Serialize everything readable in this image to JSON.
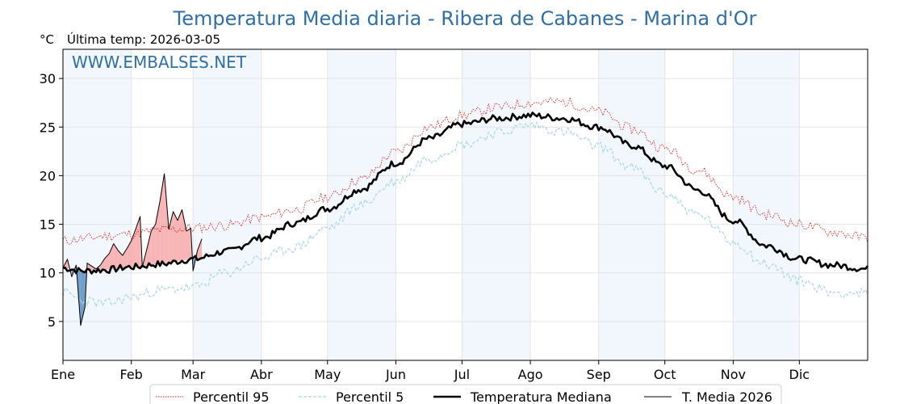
{
  "chart_data": {
    "type": "line",
    "title": "Temperatura Media diaria - Ribera de Cabanes - Marina d'Or",
    "unit_label": "°C",
    "last_temp_label": "Última temp: 2026-03-05",
    "watermark": "WWW.EMBALSES.NET",
    "x_tick_labels": [
      "Ene",
      "Feb",
      "Mar",
      "Abr",
      "May",
      "Jun",
      "Jul",
      "Ago",
      "Sep",
      "Oct",
      "Nov",
      "Dic"
    ],
    "x_tick_days": [
      1,
      32,
      60,
      91,
      121,
      152,
      182,
      213,
      244,
      274,
      305,
      335
    ],
    "xlim": [
      1,
      366
    ],
    "ylim": [
      1,
      33
    ],
    "y_ticks": [
      5,
      10,
      15,
      20,
      25,
      30
    ],
    "grid": true,
    "legend_position": "bottom-center",
    "series": [
      {
        "name": "Percentil 95",
        "style": "dotted",
        "color": "#e0201b",
        "day": [
          1,
          10,
          20,
          32,
          45,
          60,
          75,
          91,
          106,
          121,
          136,
          152,
          167,
          182,
          198,
          213,
          228,
          244,
          259,
          274,
          289,
          305,
          320,
          335,
          350,
          366
        ],
        "values": [
          13.3,
          13.5,
          13.8,
          14.0,
          14.4,
          14.6,
          14.9,
          15.7,
          16.5,
          17.8,
          19.6,
          22.4,
          25.0,
          26.2,
          27.0,
          27.5,
          27.6,
          26.6,
          24.8,
          22.8,
          20.6,
          17.8,
          16.0,
          15.0,
          14.2,
          13.6
        ]
      },
      {
        "name": "Percentil 5",
        "style": "dashed",
        "color": "#a8d4e6",
        "day": [
          1,
          10,
          20,
          32,
          45,
          60,
          75,
          91,
          106,
          121,
          136,
          152,
          167,
          182,
          198,
          213,
          228,
          244,
          259,
          274,
          289,
          305,
          320,
          335,
          350,
          366
        ],
        "values": [
          8.0,
          7.2,
          6.8,
          7.5,
          8.2,
          8.5,
          10.0,
          11.5,
          12.6,
          14.6,
          17.0,
          19.4,
          21.8,
          23.2,
          24.4,
          25.2,
          24.5,
          23.0,
          20.8,
          18.2,
          16.0,
          13.2,
          10.9,
          9.2,
          8.0,
          7.9
        ]
      },
      {
        "name": "Temperatura Mediana",
        "style": "solid-thick",
        "color": "#000000",
        "day": [
          1,
          10,
          20,
          32,
          45,
          60,
          75,
          91,
          106,
          121,
          136,
          152,
          167,
          182,
          198,
          213,
          228,
          244,
          259,
          274,
          289,
          305,
          320,
          335,
          350,
          366
        ],
        "values": [
          10.5,
          10.2,
          10.3,
          10.6,
          10.9,
          11.4,
          12.2,
          13.6,
          15.1,
          16.6,
          18.6,
          21.3,
          23.8,
          25.3,
          25.9,
          26.2,
          25.9,
          25.0,
          23.1,
          21.0,
          18.5,
          15.4,
          12.8,
          11.4,
          10.8,
          10.4
        ]
      },
      {
        "name": "T. Media 2026",
        "style": "solid-thin",
        "color": "#000000",
        "day": [
          1,
          3,
          5,
          7,
          9,
          11,
          12,
          14,
          16,
          18,
          20,
          22,
          24,
          26,
          28,
          30,
          32,
          34,
          36,
          37,
          39,
          41,
          43,
          45,
          47,
          49,
          51,
          53,
          55,
          57,
          59,
          60,
          62,
          64
        ],
        "values": [
          10.5,
          11.4,
          9.6,
          10.8,
          4.6,
          6.5,
          11.0,
          10.7,
          10.4,
          10.8,
          11.5,
          12.0,
          13.0,
          12.3,
          11.8,
          12.5,
          13.3,
          14.5,
          15.8,
          10.6,
          12.4,
          14.3,
          15.0,
          17.4,
          20.2,
          14.5,
          16.3,
          15.4,
          16.5,
          14.3,
          14.6,
          10.2,
          12.3,
          13.5
        ]
      }
    ]
  }
}
